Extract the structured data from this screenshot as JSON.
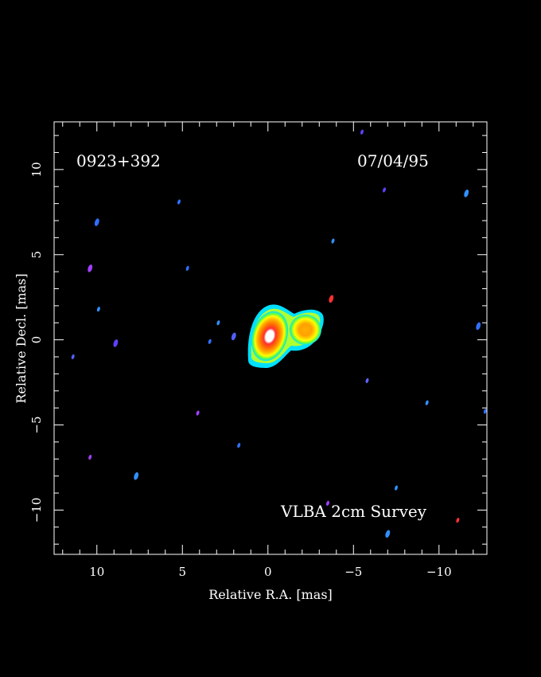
{
  "chart_data": {
    "type": "heatmap",
    "title": "",
    "source_name": "0923+392",
    "observation_date": "07/04/95",
    "survey_label": "VLBA 2cm Survey",
    "xlabel": "Relative R.A. [mas]",
    "ylabel": "Relative Decl. [mas]",
    "xlim": [
      12.5,
      -12.8
    ],
    "ylim": [
      -12.6,
      12.8
    ],
    "x_ticks": [
      10,
      5,
      0,
      -5,
      -10
    ],
    "y_ticks": [
      10,
      5,
      0,
      -5,
      -10
    ],
    "x_tick_labels": [
      "10",
      "5",
      "0",
      "−5",
      "−10"
    ],
    "y_tick_labels": [
      "10",
      "5",
      "0",
      "−5",
      "−10"
    ],
    "colorscale": [
      "#0040ff",
      "#00e0ff",
      "#00ff60",
      "#b0ff00",
      "#ffff00",
      "#ffa000",
      "#ff4000",
      "#ff0000",
      "#ffffff"
    ],
    "components": [
      {
        "name": "core",
        "x": 0.0,
        "y": 0.0,
        "peak": "white"
      },
      {
        "name": "jet",
        "x": -2.2,
        "y": 0.3,
        "peak": "orange"
      }
    ],
    "noise_points": [
      {
        "x": 10.0,
        "y": 6.9,
        "c": "#3070ff"
      },
      {
        "x": 5.2,
        "y": 8.1,
        "c": "#3070ff"
      },
      {
        "x": 4.7,
        "y": 4.2,
        "c": "#3070ff"
      },
      {
        "x": 10.4,
        "y": 4.2,
        "c": "#a040ff"
      },
      {
        "x": 9.9,
        "y": 1.8,
        "c": "#3090ff"
      },
      {
        "x": 11.4,
        "y": -1.0,
        "c": "#5060ff"
      },
      {
        "x": 8.9,
        "y": -0.2,
        "c": "#6040ff"
      },
      {
        "x": 2.9,
        "y": 1.0,
        "c": "#3090ff"
      },
      {
        "x": 3.4,
        "y": -0.1,
        "c": "#3070ff"
      },
      {
        "x": 2.0,
        "y": 0.2,
        "c": "#5060ff"
      },
      {
        "x": 4.1,
        "y": -4.3,
        "c": "#a040ff"
      },
      {
        "x": 1.7,
        "y": -6.2,
        "c": "#3070ff"
      },
      {
        "x": 7.7,
        "y": -8.0,
        "c": "#3090ff"
      },
      {
        "x": 10.4,
        "y": -6.9,
        "c": "#a040ff"
      },
      {
        "x": -3.8,
        "y": 5.8,
        "c": "#3090ff"
      },
      {
        "x": -3.7,
        "y": 2.4,
        "c": "#ff3030"
      },
      {
        "x": -5.5,
        "y": 12.2,
        "c": "#6040ff"
      },
      {
        "x": -6.8,
        "y": 8.8,
        "c": "#6040ff"
      },
      {
        "x": -11.6,
        "y": 8.6,
        "c": "#3090ff"
      },
      {
        "x": -5.8,
        "y": -2.4,
        "c": "#6060ff"
      },
      {
        "x": -9.3,
        "y": -3.7,
        "c": "#3090ff"
      },
      {
        "x": -12.3,
        "y": 0.8,
        "c": "#3070ff"
      },
      {
        "x": -12.7,
        "y": -4.2,
        "c": "#3070ff"
      },
      {
        "x": -7.5,
        "y": -8.7,
        "c": "#3090ff"
      },
      {
        "x": -7.0,
        "y": -11.4,
        "c": "#3090ff"
      },
      {
        "x": -3.5,
        "y": -9.6,
        "c": "#a040ff"
      },
      {
        "x": -11.1,
        "y": -10.6,
        "c": "#ff3030"
      }
    ]
  }
}
